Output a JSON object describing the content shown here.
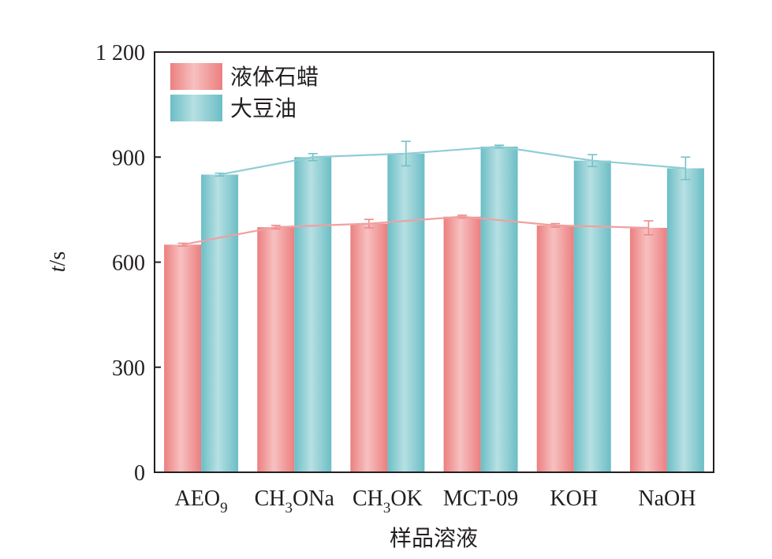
{
  "chart_data": {
    "type": "bar",
    "xlabel": "样品溶液",
    "ylabel": "t/s",
    "ylabel_italic": "t",
    "ylabel_unit": "/s",
    "ylim": [
      0,
      1200
    ],
    "yticks": [
      0,
      300,
      600,
      900,
      1200
    ],
    "ytick_labels": [
      "0",
      "300",
      "600",
      "900",
      "1 200"
    ],
    "categories": [
      "AEO9",
      "CH3ONa",
      "CH3OK",
      "MCT-09",
      "KOH",
      "NaOH"
    ],
    "category_parts": [
      {
        "main": "AEO",
        "sub": "9",
        "rest": ""
      },
      {
        "main": "CH",
        "sub": "3",
        "rest": "ONa"
      },
      {
        "main": "CH",
        "sub": "3",
        "rest": "OK"
      },
      {
        "main": "MCT-09",
        "sub": "",
        "rest": ""
      },
      {
        "main": "KOH",
        "sub": "",
        "rest": ""
      },
      {
        "main": "NaOH",
        "sub": "",
        "rest": ""
      }
    ],
    "series": [
      {
        "name": "液体石蜡",
        "values": [
          650,
          700,
          710,
          730,
          705,
          698
        ],
        "errors": [
          4,
          5,
          12,
          4,
          5,
          20
        ],
        "color": "#ee8a8a",
        "line_color": "#f0a0a0"
      },
      {
        "name": "大豆油",
        "values": [
          850,
          900,
          910,
          930,
          890,
          868
        ],
        "errors": [
          4,
          10,
          35,
          4,
          17,
          32
        ],
        "color": "#72c2c8",
        "line_color": "#8fcdd4"
      }
    ],
    "legend_position": "top-left",
    "grid": false
  }
}
